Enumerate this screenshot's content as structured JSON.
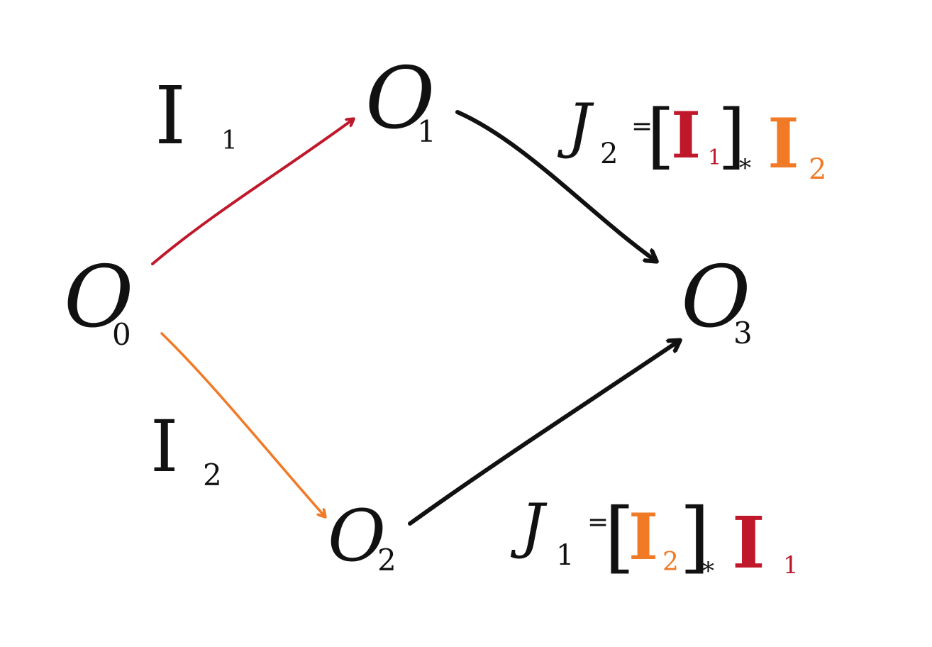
{
  "colors": {
    "ink": "#111111",
    "red": "#c0182b",
    "orange": "#f07a26"
  },
  "nodes": {
    "o0": {
      "base": "O",
      "sub": "0"
    },
    "o1": {
      "base": "O",
      "sub": "1"
    },
    "o2": {
      "base": "O",
      "sub": "2"
    },
    "o3": {
      "base": "O",
      "sub": "3"
    }
  },
  "edge_labels": {
    "i1": {
      "base": "I",
      "sub": "1"
    },
    "i2": {
      "base": "I",
      "sub": "2"
    }
  },
  "formulas": {
    "j2": {
      "lhs_base": "J",
      "lhs_sub": "2",
      "eq": "=",
      "open": "[",
      "inner_base": "I",
      "inner_sub": "1",
      "close": "]",
      "star": "*",
      "rhs_base": "I",
      "rhs_sub": "2"
    },
    "j1": {
      "lhs_base": "J",
      "lhs_sub": "1",
      "eq": "=",
      "open": "[",
      "inner_base": "I",
      "inner_sub": "2",
      "close": "]",
      "star": "*",
      "rhs_base": "I",
      "rhs_sub": "1"
    }
  }
}
